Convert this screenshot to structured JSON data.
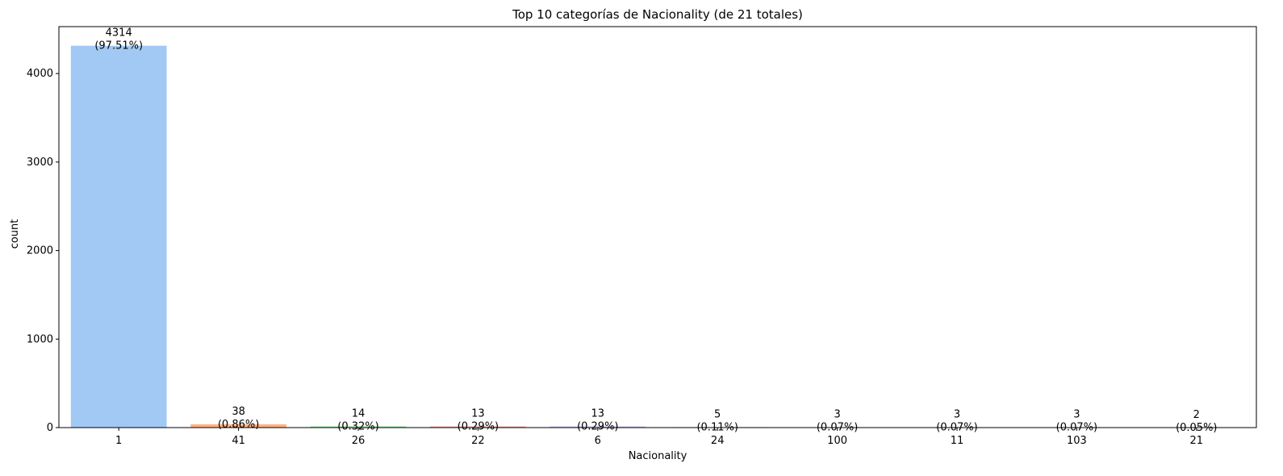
{
  "chart_data": {
    "type": "bar",
    "title": "Top 10 categorías de Nacionality (de 21 totales)",
    "xlabel": "Nacionality",
    "ylabel": "count",
    "categories": [
      "1",
      "41",
      "26",
      "22",
      "6",
      "24",
      "100",
      "11",
      "103",
      "21"
    ],
    "values": [
      4314,
      38,
      14,
      13,
      13,
      5,
      3,
      3,
      3,
      2
    ],
    "percent_labels": [
      "(97.51%)",
      "(0.86%)",
      "(0.32%)",
      "(0.29%)",
      "(0.29%)",
      "(0.11%)",
      "(0.07%)",
      "(0.07%)",
      "(0.07%)",
      "(0.05%)"
    ],
    "value_labels": [
      "4314",
      "38",
      "14",
      "13",
      "13",
      "5",
      "3",
      "3",
      "3",
      "2"
    ],
    "ylim": [
      0,
      4530
    ],
    "yticks": [
      0,
      1000,
      2000,
      3000,
      4000
    ],
    "ytick_labels": [
      "0",
      "1000",
      "2000",
      "3000",
      "4000"
    ],
    "colors": [
      "#a1c9f4",
      "#ffb482",
      "#8de5a1",
      "#ff9f9b",
      "#d0bbff",
      "#debb9b",
      "#fab0e4",
      "#cfcfcf",
      "#fffea3",
      "#b9f2f0"
    ],
    "grid": false
  }
}
